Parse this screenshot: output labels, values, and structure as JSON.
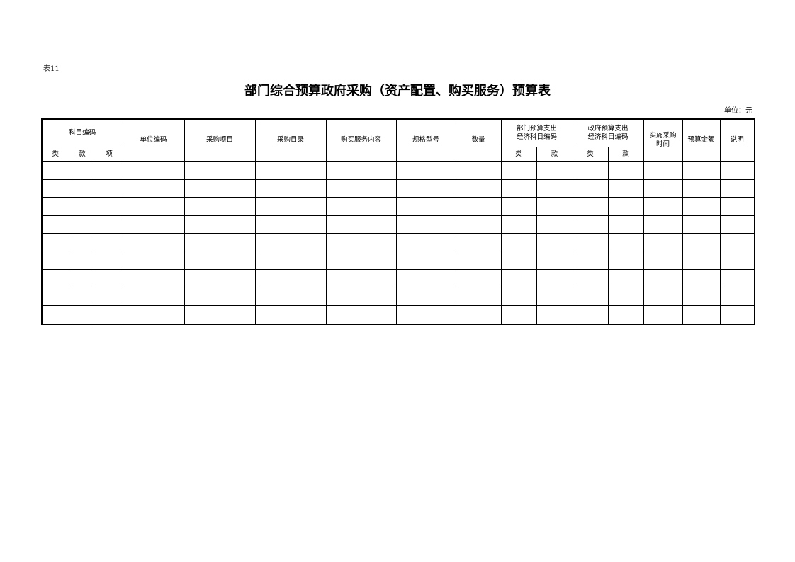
{
  "doc": {
    "label": "表11",
    "title": "部门综合预算政府采购（资产配置、购买服务）预算表",
    "unit": "单位：元"
  },
  "table": {
    "headers": {
      "subject_code": "科目编码",
      "lei": "类",
      "kuan": "款",
      "xiang": "项",
      "unit_code": "单位编码",
      "purchase_item": "采购项目",
      "purchase_catalog": "采购目录",
      "service_content": "购买服务内容",
      "spec_model": "规格型号",
      "quantity": "数量",
      "dept_econ_line1": "部门预算支出",
      "dept_econ_line2": "经济科目编码",
      "gov_econ_line1": "政府预算支出",
      "gov_econ_line2": "经济科目编码",
      "impl_time_line1": "实施采购",
      "impl_time_line2": "时间",
      "budget_amount": "预算金额",
      "remarks": "说明"
    },
    "rows": [
      [],
      [],
      [],
      [],
      [],
      [],
      [],
      [],
      []
    ]
  }
}
